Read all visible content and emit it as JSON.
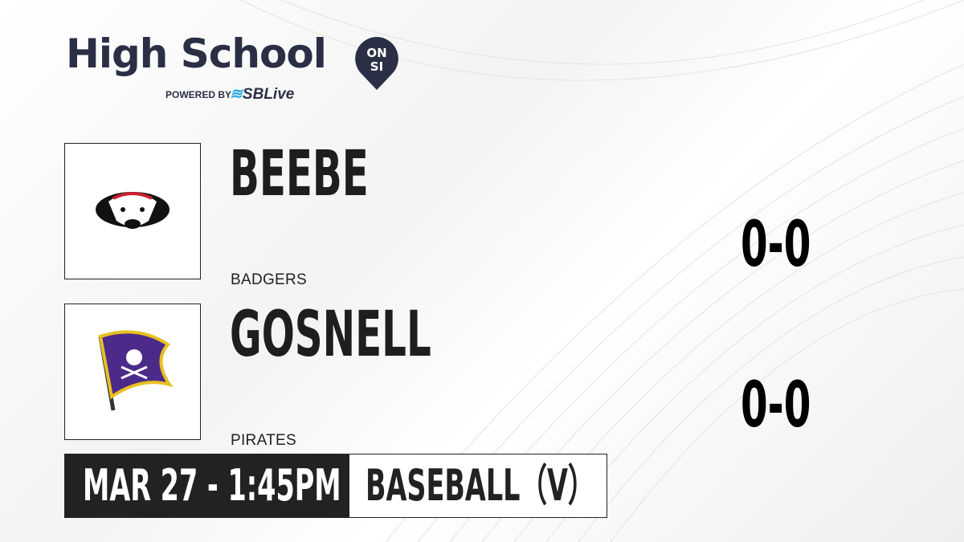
{
  "brand": {
    "title": "High School",
    "pin_text_top": "ON",
    "pin_text_bottom": "SI",
    "powered_by": "POWERED BY",
    "partner": "SBLive",
    "colors": {
      "navy": "#2b2f45",
      "accent": "#27a9e1"
    }
  },
  "teams": [
    {
      "name": "BEEBE",
      "mascot": "BADGERS",
      "score": "0-0",
      "logo_icon": "badger-logo"
    },
    {
      "name": "GOSNELL",
      "mascot": "PIRATES",
      "score": "0-0",
      "logo_icon": "pirate-flag-logo"
    }
  ],
  "game": {
    "datetime": "MAR 27 - 1:45PM",
    "sport": "BASEBALL（V）"
  }
}
